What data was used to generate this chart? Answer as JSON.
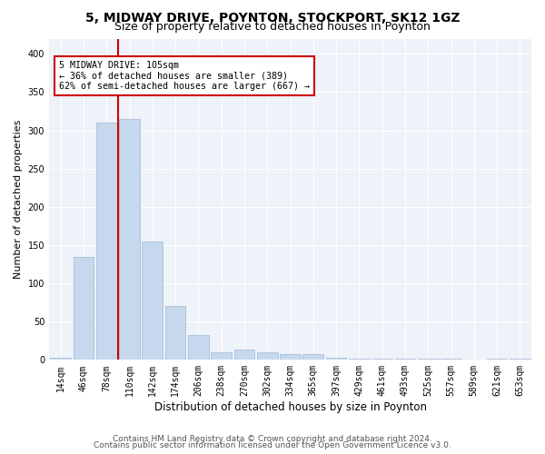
{
  "title1": "5, MIDWAY DRIVE, POYNTON, STOCKPORT, SK12 1GZ",
  "title2": "Size of property relative to detached houses in Poynton",
  "xlabel": "Distribution of detached houses by size in Poynton",
  "ylabel": "Number of detached properties",
  "categories": [
    "14sqm",
    "46sqm",
    "78sqm",
    "110sqm",
    "142sqm",
    "174sqm",
    "206sqm",
    "238sqm",
    "270sqm",
    "302sqm",
    "334sqm",
    "365sqm",
    "397sqm",
    "429sqm",
    "461sqm",
    "493sqm",
    "525sqm",
    "557sqm",
    "589sqm",
    "621sqm",
    "653sqm"
  ],
  "values": [
    3,
    135,
    310,
    315,
    155,
    70,
    32,
    10,
    13,
    10,
    8,
    7,
    3,
    2,
    1,
    1,
    1,
    1,
    0,
    1,
    2
  ],
  "bar_color": "#c5d8ed",
  "bar_edge_color": "#a0b8d0",
  "vline_x": 2.5,
  "vline_color": "#cc0000",
  "annotation_line1": "5 MIDWAY DRIVE: 105sqm",
  "annotation_line2": "← 36% of detached houses are smaller (389)",
  "annotation_line3": "62% of semi-detached houses are larger (667) →",
  "annotation_box_color": "#ffffff",
  "annotation_box_edge": "#cc0000",
  "ylim": [
    0,
    420
  ],
  "yticks": [
    0,
    50,
    100,
    150,
    200,
    250,
    300,
    350,
    400
  ],
  "footer1": "Contains HM Land Registry data © Crown copyright and database right 2024.",
  "footer2": "Contains public sector information licensed under the Open Government Licence v3.0.",
  "bg_color": "#eef2f9",
  "title1_fontsize": 10,
  "title2_fontsize": 9,
  "xlabel_fontsize": 8.5,
  "ylabel_fontsize": 8,
  "tick_fontsize": 7,
  "footer_fontsize": 6.5
}
